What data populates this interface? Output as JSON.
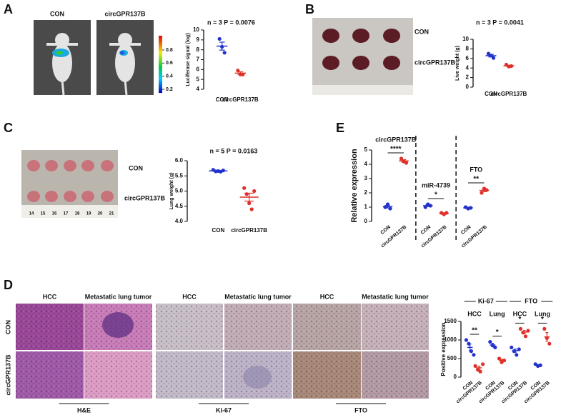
{
  "panels": {
    "A": {
      "label": "A",
      "image_labels": [
        "CON",
        "circGPR137B"
      ],
      "colorbar_ticks": [
        0.8,
        0.6,
        0.4,
        0.2
      ]
    },
    "B": {
      "label": "B",
      "image_labels": [
        "CON",
        "circGPR137B"
      ]
    },
    "C": {
      "label": "C",
      "image_labels": [
        "CON",
        "circGPR137B"
      ],
      "ruler_ticks": [
        14,
        15,
        16,
        17,
        18,
        19,
        20,
        21
      ]
    },
    "D": {
      "label": "D",
      "columns": [
        "HCC",
        "Metastatic lung tumor",
        "HCC",
        "Metastatic lung tumor",
        "HCC",
        "Metastatic lung tumor"
      ],
      "rows": [
        "CON",
        "circGPR137B"
      ],
      "stains": [
        "H&E",
        "Ki-67",
        "FTO"
      ]
    },
    "E": {
      "label": "E"
    }
  },
  "chart_data": [
    {
      "type": "strip",
      "title": "n = 3 P = 0.0076",
      "y_label": "Luciferase signal (log)",
      "ylim": [
        4,
        10
      ],
      "yticks": [
        4,
        5,
        6,
        7,
        8,
        9,
        10
      ],
      "colors": [
        "#2233cc",
        "#e0302a"
      ],
      "groups": [
        {
          "categories": [
            "CON",
            "circGPR137B"
          ],
          "values": [
            [
              9.1,
              8.3,
              7.7
            ],
            [
              5.9,
              5.5,
              5.5
            ]
          ]
        }
      ]
    },
    {
      "type": "strip",
      "title": "n = 3 P = 0.0041",
      "y_label": "Live weight (g)",
      "ylim": [
        0,
        10
      ],
      "yticks": [
        0,
        2,
        4,
        6,
        8,
        10
      ],
      "colors": [
        "#2233cc",
        "#e0302a"
      ],
      "groups": [
        {
          "categories": [
            "CON",
            "circGPR137B"
          ],
          "values": [
            [
              7.0,
              6.6,
              6.1
            ],
            [
              4.7,
              4.3,
              4.4
            ]
          ]
        }
      ]
    },
    {
      "type": "strip",
      "title": "n = 5 P = 0.0163",
      "y_label": "Lung weight (g)",
      "ylim": [
        4,
        6
      ],
      "yticks": [
        {
          "value": 4,
          "label": "4.0"
        },
        4.5,
        {
          "value": 5,
          "label": "5.0"
        },
        5.5,
        {
          "value": 6,
          "label": "6.0"
        }
      ],
      "colors": [
        "#2233cc",
        "#e0302a"
      ],
      "groups": [
        {
          "categories": [
            "CON",
            "circGPR137B"
          ],
          "values": [
            [
              5.7,
              5.65,
              5.66,
              5.64,
              5.68
            ],
            [
              5.1,
              4.9,
              4.6,
              4.4,
              5.0
            ]
          ]
        }
      ]
    },
    {
      "type": "strip",
      "y_label": "Relative expression",
      "ylim": [
        0,
        5
      ],
      "yticks": [
        0,
        1,
        2,
        3,
        4,
        5
      ],
      "colors": [
        "#2233cc",
        "#e0302a"
      ],
      "groups": [
        {
          "name": "circGPR137B",
          "significance": "****",
          "categories": [
            "CON",
            "circGPR137B"
          ],
          "values": [
            [
              1.0,
              1.2,
              0.9
            ],
            [
              4.4,
              4.2,
              4.1
            ]
          ]
        },
        {
          "name": "miR-4739",
          "significance": "*",
          "categories": [
            "CON",
            "circGPR137B"
          ],
          "values": [
            [
              1.0,
              1.2,
              1.1
            ],
            [
              0.6,
              0.5,
              0.6
            ]
          ]
        },
        {
          "name": "FTO",
          "significance": "**",
          "categories": [
            "CON",
            "circGPR137B"
          ],
          "values": [
            [
              1.0,
              0.9,
              0.95
            ],
            [
              2.0,
              2.3,
              2.2
            ]
          ]
        }
      ]
    },
    {
      "type": "strip",
      "y_label": "Positive expression",
      "ylim": [
        0,
        1500
      ],
      "yticks": [
        0,
        500,
        1000,
        1500
      ],
      "colors": [
        "#2233cc",
        "#e0302a"
      ],
      "supergroups": [
        {
          "name": "Ki-67",
          "groups": [
            {
              "name": "HCC",
              "significance": "**",
              "categories": [
                "CON",
                "circGPR137B"
              ],
              "values": [
                [
                  1000,
                  900,
                  700,
                  600
                ],
                [
                  300,
                  200,
                  150,
                  350
                ]
              ]
            },
            {
              "name": "Lung",
              "significance": "*",
              "categories": [
                "CON",
                "circGPR137B"
              ],
              "values": [
                [
                  950,
                  850,
                  800
                ],
                [
                  500,
                  400,
                  450
                ]
              ]
            }
          ]
        },
        {
          "name": "FTO",
          "groups": [
            {
              "name": "HCC",
              "significance": "*",
              "categories": [
                "CON",
                "circGPR137B"
              ],
              "values": [
                [
                  800,
                  700,
                  600,
                  750
                ],
                [
                  1300,
                  1200,
                  1100,
                  1250
                ]
              ]
            },
            {
              "name": "Lung",
              "significance": "*",
              "categories": [
                "CON",
                "circGPR137B"
              ],
              "values": [
                [
                  350,
                  300,
                  320
                ],
                [
                  1300,
                  1050,
                  900
                ]
              ]
            }
          ]
        }
      ]
    }
  ]
}
